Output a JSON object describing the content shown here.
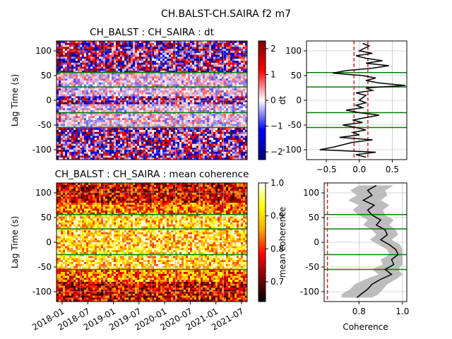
{
  "figure": {
    "suptitle": "CH.BALST-CH.SAIRA f2 m7",
    "colors": {
      "green_lines": "#008000",
      "red_dash": "#d62728",
      "dt_cmap": [
        "#000080",
        "#0000ff",
        "#ffffff",
        "#ff0000",
        "#800000"
      ],
      "coh_cmap": [
        "#000000",
        "#800000",
        "#ff0000",
        "#ffa500",
        "#ffff00",
        "#ffffff"
      ],
      "envelope": "#bdbdbd"
    }
  },
  "chart_data": [
    {
      "id": "dt-heatmap",
      "type": "heatmap",
      "title": "CH_BALST : CH_SAIRA : dt",
      "xlabel": "",
      "ylabel": "Lag Time (s)",
      "ylim": [
        -120,
        120
      ],
      "yticks": [
        100,
        50,
        0,
        -50,
        -100
      ],
      "xticks": [],
      "colorbar": {
        "range": [
          -2.3,
          2.3
        ],
        "ticks": [
          2,
          1,
          0,
          -1,
          -2
        ],
        "tick_labels": [
          "2",
          "1",
          "0",
          "−1",
          "−2"
        ],
        "label": "dt"
      },
      "green_lines_lag": [
        56,
        27,
        -25,
        -55
      ],
      "grid": true
    },
    {
      "id": "dt-profile",
      "type": "line",
      "xlabel": "",
      "ylabel": "Lag Time (s)",
      "xlim": [
        -0.8,
        0.72
      ],
      "ylim": [
        -120,
        120
      ],
      "xticks": [
        -0.5,
        0.0,
        0.5
      ],
      "xtick_labels": [
        "−0.5",
        "0.0",
        "0.5"
      ],
      "yticks": [
        100,
        50,
        0,
        -50,
        -100
      ],
      "red_dashed_x": [
        -0.08,
        0.13
      ],
      "green_lines_lag": [
        56,
        27,
        -25,
        -55
      ],
      "series": [
        {
          "x": [
            0.05,
            0.15,
            0.0,
            0.2,
            -0.05,
            0.1,
            0.35,
            0.1,
            0.45,
            0.2,
            -0.2,
            -0.4,
            0.05,
            0.25,
            0.1,
            0.3,
            0.7,
            0.1,
            0.2,
            -0.05,
            0.1,
            0.05,
            0.0,
            0.1,
            -0.05,
            0.05,
            -0.2,
            0.0,
            0.3,
            0.1,
            -0.1,
            0.05,
            -0.25,
            -0.05,
            0.1,
            -0.1,
            0.0,
            -0.3,
            0.2,
            -0.1,
            -0.4,
            -0.6,
            0.25,
            -0.05,
            0.1
          ],
          "y": [
            115,
            110,
            100,
            95,
            90,
            85,
            80,
            75,
            70,
            65,
            60,
            55,
            50,
            45,
            40,
            35,
            30,
            25,
            20,
            15,
            10,
            5,
            0,
            -5,
            -10,
            -15,
            -20,
            -25,
            -30,
            -35,
            -40,
            -45,
            -50,
            -55,
            -60,
            -65,
            -70,
            -75,
            -80,
            -85,
            -95,
            -100,
            -105,
            -110,
            -115
          ]
        }
      ],
      "grid": true
    },
    {
      "id": "coh-heatmap",
      "type": "heatmap",
      "title": "CH_BALST : CH_SAIRA : mean coherence",
      "xlabel": "",
      "ylabel": "Lag Time (s)",
      "ylim": [
        -120,
        120
      ],
      "yticks": [
        100,
        50,
        0,
        -50,
        -100
      ],
      "xticks": [
        "2018-01",
        "2018-07",
        "2019-01",
        "2019-07",
        "2020-01",
        "2020-07",
        "2021-01",
        "2021-07"
      ],
      "colorbar": {
        "range": [
          0.64,
          1.0
        ],
        "ticks": [
          1.0,
          0.9,
          0.8,
          0.7
        ],
        "tick_labels": [
          "1.0",
          "0.9",
          "0.8",
          "0.7"
        ],
        "label": "mean coherence"
      },
      "green_lines_lag": [
        56,
        27,
        -25,
        -55
      ],
      "grid": true
    },
    {
      "id": "coh-profile",
      "type": "area",
      "xlabel": "Coherence",
      "ylabel": "Lag Time (s)",
      "xlim": [
        0.64,
        1.02
      ],
      "ylim": [
        -120,
        120
      ],
      "xticks": [
        0.8,
        1.0
      ],
      "xtick_labels": [
        "0.8",
        "1.0"
      ],
      "yticks": [
        100,
        50,
        0,
        -50,
        -100
      ],
      "red_dashed_x": [
        0.655
      ],
      "green_lines_lag": [
        56,
        27,
        -25,
        -55
      ],
      "series": [
        {
          "y": [
            115,
            105,
            95,
            85,
            75,
            65,
            55,
            45,
            35,
            25,
            15,
            5,
            -5,
            -15,
            -25,
            -35,
            -45,
            -55,
            -65,
            -75,
            -85,
            -95,
            -105,
            -112
          ],
          "x": [
            0.88,
            0.84,
            0.86,
            0.82,
            0.87,
            0.84,
            0.86,
            0.9,
            0.88,
            0.92,
            0.93,
            0.9,
            0.94,
            0.97,
            0.98,
            0.95,
            0.96,
            0.92,
            0.95,
            0.9,
            0.86,
            0.84,
            0.81,
            0.79
          ],
          "lo": [
            0.8,
            0.76,
            0.79,
            0.75,
            0.8,
            0.77,
            0.8,
            0.84,
            0.82,
            0.86,
            0.88,
            0.85,
            0.89,
            0.93,
            0.94,
            0.9,
            0.91,
            0.86,
            0.89,
            0.83,
            0.78,
            0.76,
            0.72,
            0.72
          ],
          "hi": [
            0.96,
            0.92,
            0.93,
            0.9,
            0.94,
            0.91,
            0.92,
            0.96,
            0.94,
            0.97,
            0.98,
            0.95,
            0.99,
            1.0,
            1.0,
            1.0,
            1.0,
            0.98,
            1.0,
            0.97,
            0.93,
            0.91,
            0.89,
            0.86
          ]
        }
      ],
      "grid": true
    }
  ]
}
